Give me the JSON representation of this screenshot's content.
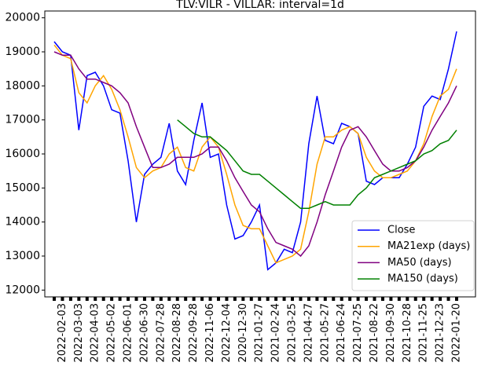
{
  "chart_data": {
    "type": "line",
    "title": "TLV:VILR - VILLAR: interval=1d",
    "categories": [
      null,
      "2022-02-03",
      null,
      "2022-03-03",
      null,
      "2022-04-03",
      null,
      "2022-05-02",
      null,
      "2022-06-01",
      null,
      "2022-06-30",
      null,
      "2022-07-28",
      null,
      "2022-08-28",
      null,
      "2022-09-28",
      null,
      "2022-11-06",
      null,
      "2022-12-04",
      null,
      "2020-12-30",
      null,
      "2021-01-27",
      null,
      "2021-02-24",
      null,
      "2021-03-25",
      null,
      "2021-04-27",
      null,
      "2021-05-27",
      null,
      "2021-06-24",
      null,
      "2021-07-25",
      null,
      "2021-08-22",
      null,
      "2021-09-30",
      null,
      "2021-10-28",
      null,
      "2021-11-25",
      null,
      "2021-12-23",
      null,
      "2022-01-20"
    ],
    "series": [
      {
        "name": "Close",
        "color": "#0000ff",
        "values": [
          19300,
          19000,
          18900,
          16700,
          18300,
          18400,
          18000,
          17300,
          17200,
          15800,
          14000,
          15400,
          15700,
          15900,
          16900,
          15500,
          15100,
          16400,
          17500,
          15900,
          16000,
          14500,
          13500,
          13600,
          14000,
          14500,
          12600,
          12800,
          13200,
          13100,
          14000,
          16300,
          17700,
          16400,
          16300,
          16900,
          16800,
          16600,
          15200,
          15100,
          15300,
          15300,
          15300,
          15700,
          16200,
          17400,
          17700,
          17600,
          18500,
          19600
        ]
      },
      {
        "name": "MA21exp (days)",
        "color": "#ffa500",
        "values": [
          19200,
          18900,
          18800,
          17800,
          17500,
          18000,
          18300,
          17900,
          17300,
          16500,
          15600,
          15300,
          15500,
          15600,
          16000,
          16200,
          15600,
          15500,
          16200,
          16500,
          16200,
          15400,
          14500,
          13900,
          13800,
          13800,
          13300,
          12800,
          12900,
          13000,
          13200,
          14300,
          15700,
          16500,
          16500,
          16700,
          16800,
          16600,
          15900,
          15500,
          15300,
          15300,
          15400,
          15500,
          15800,
          16300,
          17100,
          17700,
          17900,
          18500
        ]
      },
      {
        "name": "MA50 (days)",
        "color": "#800080",
        "values": [
          19000,
          18900,
          18900,
          18500,
          18200,
          18200,
          18100,
          18000,
          17800,
          17500,
          16800,
          16200,
          15600,
          15600,
          15700,
          15900,
          15900,
          15900,
          16000,
          16200,
          16200,
          15800,
          15300,
          14900,
          14500,
          14300,
          13800,
          13400,
          13300,
          13200,
          13000,
          13300,
          14000,
          14800,
          15500,
          16200,
          16700,
          16800,
          16500,
          16100,
          15700,
          15500,
          15500,
          15600,
          15800,
          16200,
          16700,
          17100,
          17500,
          18000
        ]
      },
      {
        "name": "MA150 (days)",
        "color": "#008000",
        "values": [
          null,
          null,
          null,
          null,
          null,
          null,
          null,
          null,
          null,
          null,
          null,
          null,
          null,
          null,
          null,
          17000,
          16800,
          16600,
          16500,
          16500,
          16300,
          16100,
          15800,
          15500,
          15400,
          15400,
          15200,
          15000,
          14800,
          14600,
          14400,
          14400,
          14500,
          14600,
          14500,
          14500,
          14500,
          14800,
          15000,
          15300,
          15400,
          15500,
          15600,
          15700,
          15800,
          16000,
          16100,
          16300,
          16400,
          16700
        ]
      }
    ],
    "ylim": [
      11800,
      20200
    ],
    "yticks": [
      12000,
      13000,
      14000,
      15000,
      16000,
      17000,
      18000,
      19000,
      20000
    ],
    "grid": false,
    "legend": "lower right"
  }
}
